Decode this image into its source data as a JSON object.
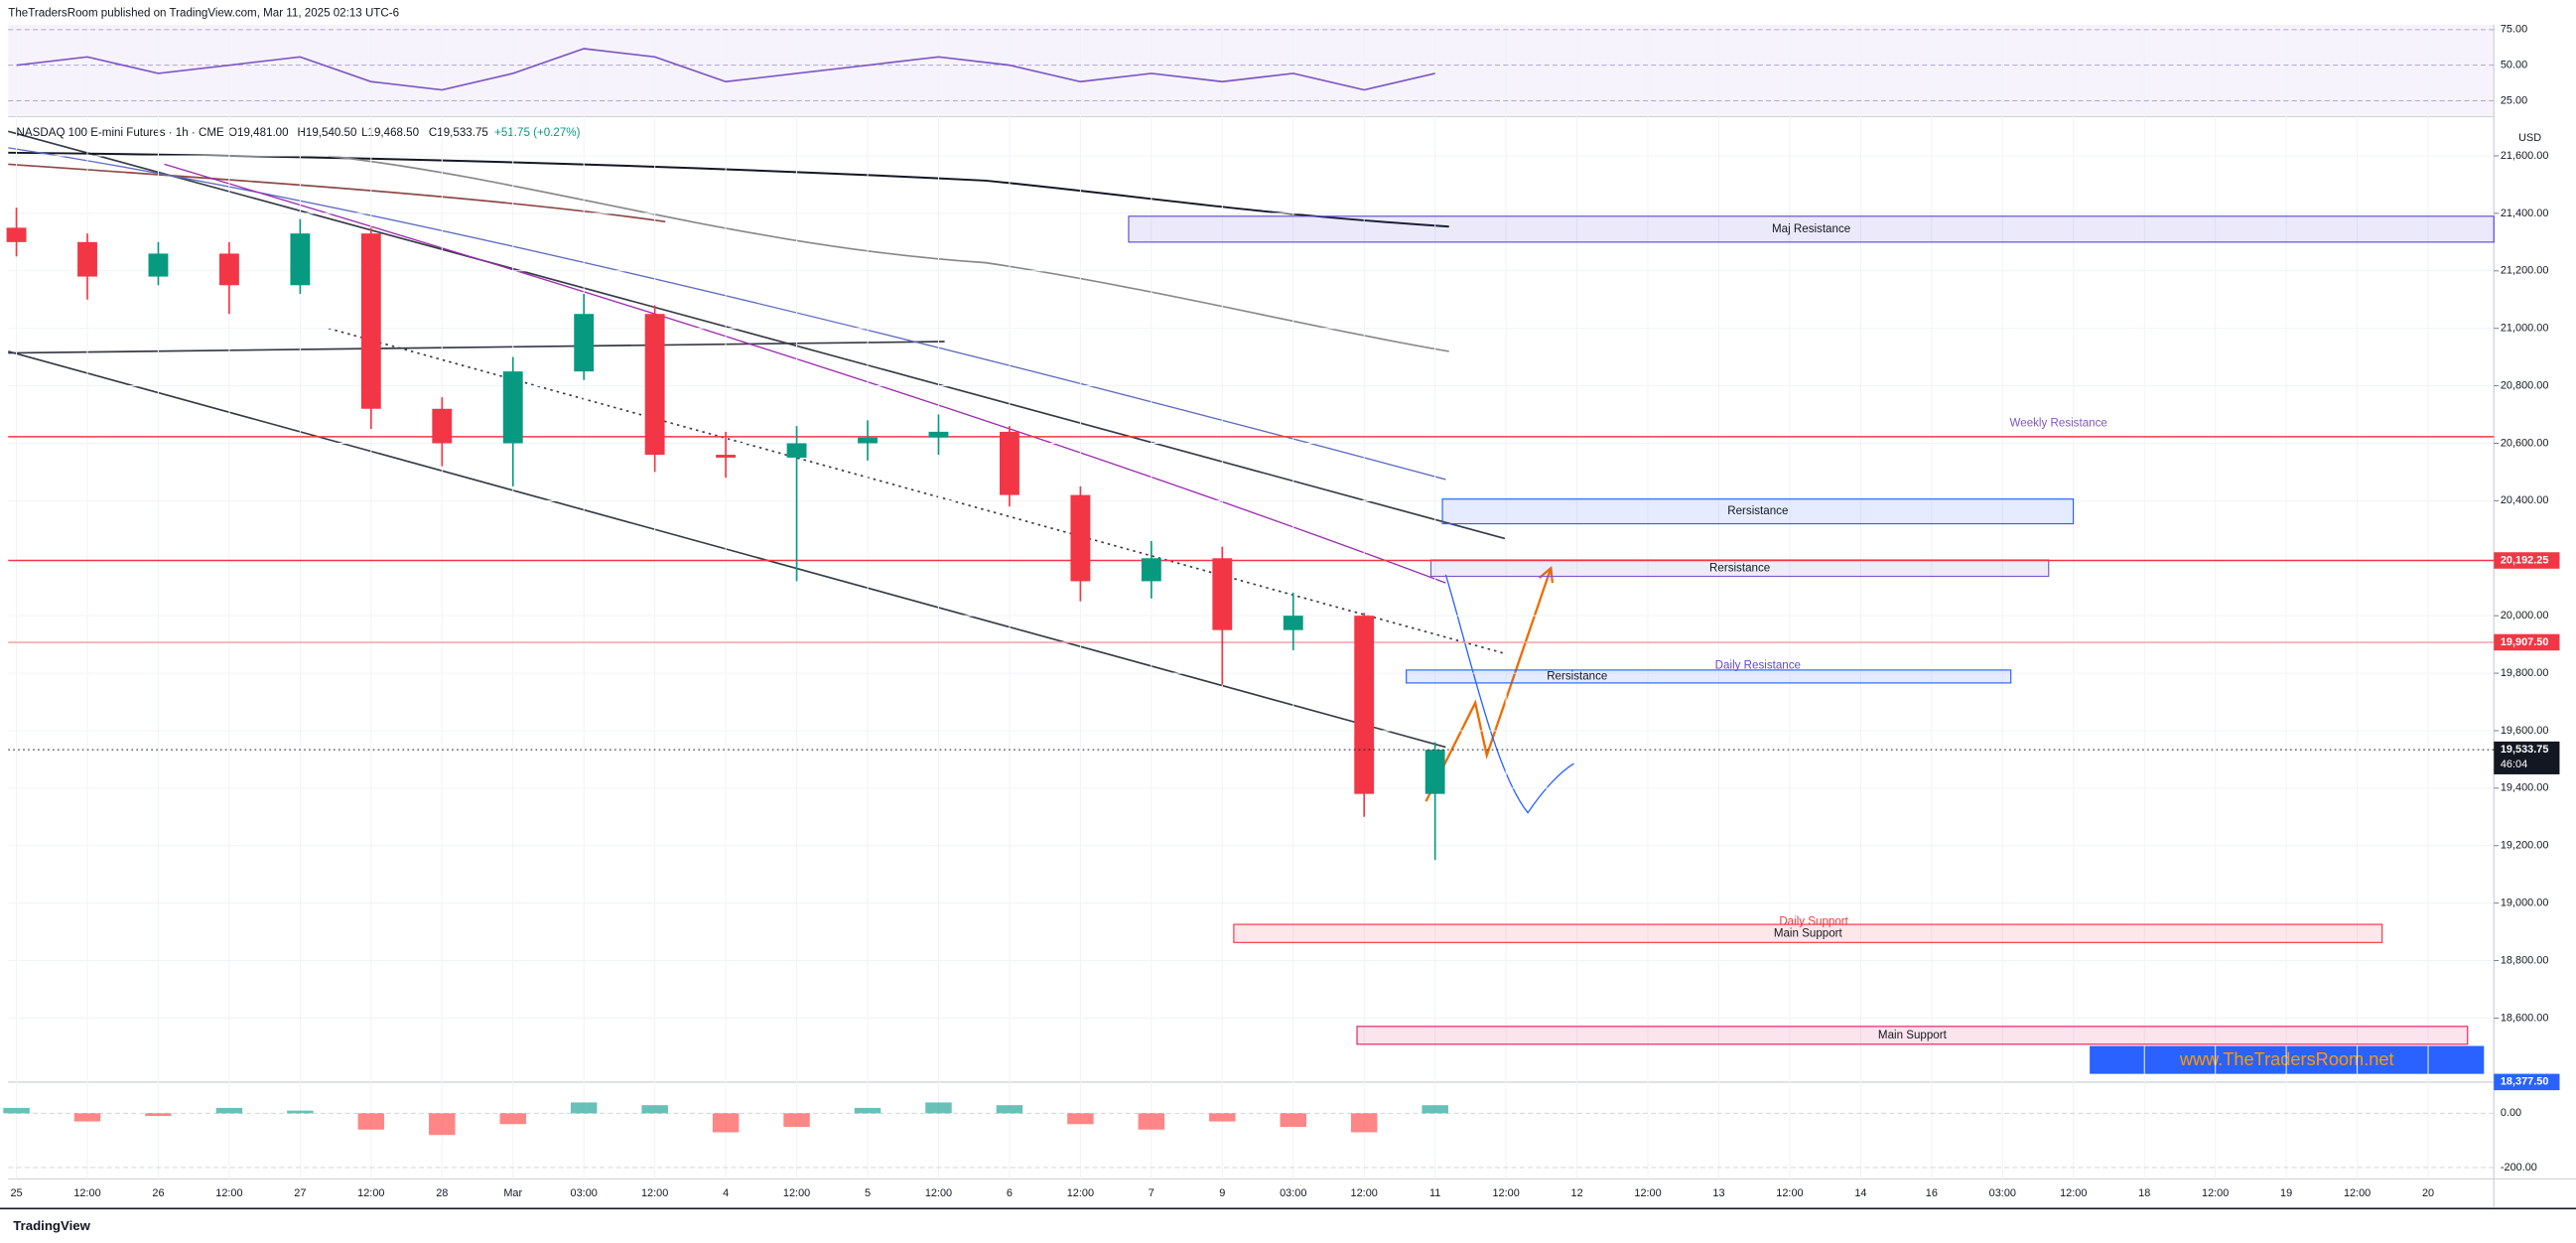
{
  "chart_data": {
    "type": "candlestick",
    "header": "TheTradersRoom published on TradingView.com, Mar 11, 2025 02:13 UTC-6",
    "title": "NASDAQ 100 E-mini Futures · 1h · CME",
    "ohlc_labels": [
      "O19,481.00",
      "H19,540.50",
      "L19,468.50",
      "C19,533.75",
      "+51.75 (+0.27%)"
    ],
    "currency": "USD",
    "footer": "TradingView",
    "watermark": "www.TheTradersRoom.net",
    "categories": [
      "25",
      "12:00",
      "26",
      "12:00",
      "27",
      "12:00",
      "28",
      "Mar",
      "03:00",
      "12:00",
      "4",
      "12:00",
      "5",
      "12:00",
      "6",
      "12:00",
      "7",
      "9",
      "03:00",
      "12:00",
      "11",
      "12:00",
      "12",
      "12:00",
      "13",
      "12:00",
      "14",
      "16",
      "03:00",
      "12:00",
      "18",
      "12:00",
      "19",
      "12:00",
      "20"
    ],
    "open": [
      21350,
      21300,
      21180,
      21260,
      21150,
      21330,
      20720,
      20600,
      20850,
      21050,
      20560,
      20550,
      20600,
      20620,
      20640,
      20420,
      20120,
      20200,
      19950,
      20000,
      19380,
      null,
      null,
      null,
      null,
      null,
      null,
      null,
      null,
      null,
      null,
      null,
      null,
      null,
      null
    ],
    "high": [
      21420,
      21330,
      21300,
      21300,
      21380,
      21350,
      20760,
      20900,
      21120,
      21080,
      20640,
      20660,
      20680,
      20700,
      20660,
      20450,
      20260,
      20240,
      20080,
      20010,
      19560,
      null,
      null,
      null,
      null,
      null,
      null,
      null,
      null,
      null,
      null,
      null,
      null,
      null,
      null
    ],
    "low": [
      21250,
      21100,
      21150,
      21050,
      21120,
      20650,
      20520,
      20450,
      20820,
      20500,
      20480,
      20120,
      20540,
      20560,
      20380,
      20050,
      20060,
      19760,
      19880,
      19300,
      19150,
      null,
      null,
      null,
      null,
      null,
      null,
      null,
      null,
      null,
      null,
      null,
      null,
      null,
      null
    ],
    "close": [
      21300,
      21180,
      21260,
      21150,
      21330,
      20720,
      20600,
      20850,
      21050,
      20560,
      20550,
      20600,
      20620,
      20640,
      20420,
      20120,
      20200,
      19950,
      20000,
      19380,
      19533.75,
      null,
      null,
      null,
      null,
      null,
      null,
      null,
      null,
      null,
      null,
      null,
      null,
      null,
      null
    ],
    "up_color": "#089981",
    "down_color": "#f23645",
    "ylim": [
      18383,
      21731
    ],
    "yticks": [
      {
        "value": 21600,
        "label": "21,600.00"
      },
      {
        "value": 21400,
        "label": "21,400.00"
      },
      {
        "value": 21200,
        "label": "21,200.00"
      },
      {
        "value": 21000,
        "label": "21,000.00"
      },
      {
        "value": 20800,
        "label": "20,800.00"
      },
      {
        "value": 20600,
        "label": "20,600.00"
      },
      {
        "value": 20400,
        "label": "20,400.00"
      },
      {
        "value": 20000,
        "label": "20,000.00"
      },
      {
        "value": 19800,
        "label": "19,800.00"
      },
      {
        "value": 19600,
        "label": "19,600.00"
      },
      {
        "value": 19400,
        "label": "19,400.00"
      },
      {
        "value": 19200,
        "label": "19,200.00"
      },
      {
        "value": 19000,
        "label": "19,000.00"
      },
      {
        "value": 18800,
        "label": "18,800.00"
      },
      {
        "value": 18600,
        "label": "18,600.00"
      }
    ],
    "grid": true,
    "price_labels": [
      {
        "value": 20192.25,
        "label": "20,192.25",
        "color": "#f23645"
      },
      {
        "value": 19907.5,
        "label": "19,907.50",
        "color": "#f23645"
      },
      {
        "value": 19533.75,
        "label": "19,533.75",
        "color": "#131722"
      },
      {
        "value": 18377.5,
        "label": "18,377.50",
        "color": "#2962ff"
      }
    ],
    "countdown": "46:04",
    "levels": [
      {
        "value": 20623,
        "color": "#f23645"
      },
      {
        "value": 20192.25,
        "color": "#f23645"
      },
      {
        "value": 19907.5,
        "color": "#f7a1a8"
      }
    ],
    "zones": [
      {
        "label": "Maj Resistance",
        "high": 21390,
        "low": 21300,
        "color": "#5b4bd6"
      },
      {
        "label": "Rersistance",
        "high": 20406,
        "low": 20320,
        "color": "#2962ff"
      },
      {
        "label": "Rersistance",
        "high": 20194,
        "low": 20137,
        "color": "#7e57c2"
      },
      {
        "label": "Rersistance",
        "high": 19811,
        "low": 19766,
        "color": "#2962ff"
      },
      {
        "label": "Main Support",
        "high": 18926,
        "low": 18863,
        "color": "#f23645"
      },
      {
        "label": "Main Support",
        "high": 18571,
        "low": 18509,
        "color": "#e91e63"
      }
    ],
    "annotations": [
      {
        "text": "Weekly Resistance",
        "value": 20663,
        "color": "#7e57c2"
      },
      {
        "text": "Daily Resistance",
        "value": 19820,
        "color": "#5b4bd6"
      },
      {
        "text": "Daily Support",
        "value": 18930,
        "color": "#f23645"
      }
    ],
    "rsi": {
      "ylim": [
        15,
        78.5
      ],
      "yticks": [
        {
          "value": 75,
          "label": "75.00"
        },
        {
          "value": 50,
          "label": "50.00"
        },
        {
          "value": 25,
          "label": "25.00"
        }
      ],
      "color": "#7e57c2",
      "values": [
        50,
        55.8,
        44.2,
        50,
        55.8,
        38.4,
        32.6,
        44.2,
        61.6,
        55.8,
        38.4,
        44.2,
        50,
        55.8,
        50,
        38.4,
        44.2,
        38.4,
        44.2,
        32.6,
        44.2,
        null,
        null,
        null,
        null,
        null,
        null,
        null,
        null,
        null,
        null,
        null,
        null,
        null,
        null
      ]
    },
    "macd": {
      "ylim": [
        -242,
        109
      ],
      "yticks": [
        {
          "value": 0,
          "label": "0.00"
        },
        {
          "value": -200,
          "label": "-200.00"
        }
      ],
      "values": [
        20,
        -30,
        -10,
        20,
        10,
        -60,
        -80,
        -40,
        40,
        30,
        -70,
        -50,
        20,
        40,
        30,
        -40,
        -60,
        -30,
        -50,
        -70,
        30,
        null,
        null,
        null,
        null,
        null,
        null,
        null,
        null,
        null,
        null,
        null,
        null,
        null,
        null
      ]
    }
  }
}
